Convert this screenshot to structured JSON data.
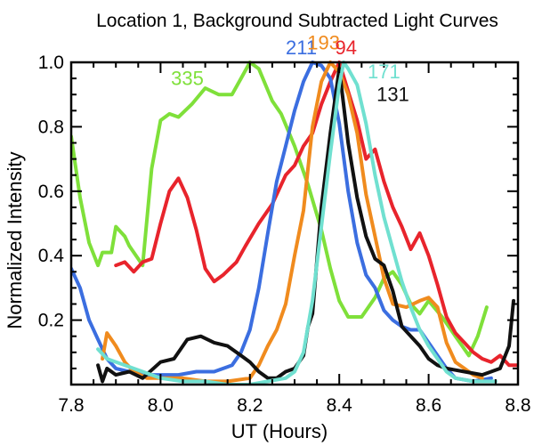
{
  "chart_data": {
    "type": "line",
    "title": "Location 1, Background Subtracted Light Curves",
    "xlabel": "UT (Hours)",
    "ylabel": "Normalized Intensity",
    "xlim": [
      7.8,
      8.8
    ],
    "ylim": [
      0.0,
      1.0
    ],
    "x_ticks": [
      7.8,
      8.0,
      8.2,
      8.4,
      8.6,
      8.8
    ],
    "x_tick_labels": [
      "7.8",
      "8.0",
      "8.2",
      "8.4",
      "8.6",
      "8.8"
    ],
    "y_ticks": [
      0.2,
      0.4,
      0.6,
      0.8,
      1.0
    ],
    "y_tick_labels": [
      "0.2",
      "0.4",
      "0.6",
      "0.8",
      "1.0"
    ],
    "series": [
      {
        "name": "335",
        "color": "#7fe03a",
        "points": [
          [
            7.8,
            0.77
          ],
          [
            7.82,
            0.58
          ],
          [
            7.84,
            0.44
          ],
          [
            7.86,
            0.37
          ],
          [
            7.87,
            0.41
          ],
          [
            7.89,
            0.41
          ],
          [
            7.9,
            0.49
          ],
          [
            7.92,
            0.46
          ],
          [
            7.93,
            0.43
          ],
          [
            7.95,
            0.39
          ],
          [
            7.96,
            0.37
          ],
          [
            7.98,
            0.67
          ],
          [
            8.0,
            0.82
          ],
          [
            8.02,
            0.84
          ],
          [
            8.04,
            0.83
          ],
          [
            8.07,
            0.87
          ],
          [
            8.1,
            0.92
          ],
          [
            8.13,
            0.9
          ],
          [
            8.16,
            0.9
          ],
          [
            8.18,
            0.95
          ],
          [
            8.2,
            1.0
          ],
          [
            8.22,
            0.98
          ],
          [
            8.25,
            0.88
          ],
          [
            8.27,
            0.84
          ],
          [
            8.3,
            0.74
          ],
          [
            8.33,
            0.62
          ],
          [
            8.36,
            0.48
          ],
          [
            8.38,
            0.36
          ],
          [
            8.4,
            0.26
          ],
          [
            8.42,
            0.21
          ],
          [
            8.45,
            0.21
          ],
          [
            8.48,
            0.27
          ],
          [
            8.5,
            0.33
          ],
          [
            8.52,
            0.35
          ],
          [
            8.54,
            0.31
          ],
          [
            8.56,
            0.25
          ],
          [
            8.58,
            0.22
          ],
          [
            8.6,
            0.26
          ],
          [
            8.63,
            0.21
          ],
          [
            8.66,
            0.15
          ],
          [
            8.69,
            0.09
          ],
          [
            8.71,
            0.15
          ],
          [
            8.73,
            0.24
          ]
        ]
      },
      {
        "name": "94",
        "color": "#e8242c",
        "points": [
          [
            7.9,
            0.37
          ],
          [
            7.92,
            0.38
          ],
          [
            7.94,
            0.35
          ],
          [
            7.96,
            0.38
          ],
          [
            7.98,
            0.39
          ],
          [
            8.0,
            0.5
          ],
          [
            8.02,
            0.6
          ],
          [
            8.04,
            0.64
          ],
          [
            8.06,
            0.58
          ],
          [
            8.08,
            0.48
          ],
          [
            8.1,
            0.36
          ],
          [
            8.12,
            0.32
          ],
          [
            8.14,
            0.34
          ],
          [
            8.17,
            0.38
          ],
          [
            8.19,
            0.43
          ],
          [
            8.22,
            0.5
          ],
          [
            8.25,
            0.56
          ],
          [
            8.28,
            0.65
          ],
          [
            8.3,
            0.68
          ],
          [
            8.32,
            0.74
          ],
          [
            8.34,
            0.78
          ],
          [
            8.36,
            0.87
          ],
          [
            8.38,
            0.94
          ],
          [
            8.4,
            1.0
          ],
          [
            8.42,
            0.91
          ],
          [
            8.44,
            0.82
          ],
          [
            8.46,
            0.7
          ],
          [
            8.48,
            0.73
          ],
          [
            8.5,
            0.63
          ],
          [
            8.52,
            0.55
          ],
          [
            8.54,
            0.49
          ],
          [
            8.56,
            0.42
          ],
          [
            8.58,
            0.47
          ],
          [
            8.6,
            0.4
          ],
          [
            8.62,
            0.31
          ],
          [
            8.64,
            0.21
          ],
          [
            8.66,
            0.16
          ],
          [
            8.68,
            0.13
          ],
          [
            8.7,
            0.1
          ],
          [
            8.72,
            0.08
          ],
          [
            8.74,
            0.07
          ],
          [
            8.76,
            0.09
          ],
          [
            8.78,
            0.06
          ],
          [
            8.8,
            0.06
          ]
        ]
      },
      {
        "name": "211",
        "color": "#3b6ee0",
        "points": [
          [
            7.8,
            0.36
          ],
          [
            7.82,
            0.3
          ],
          [
            7.84,
            0.2
          ],
          [
            7.86,
            0.14
          ],
          [
            7.88,
            0.08
          ],
          [
            7.9,
            0.05
          ],
          [
            7.93,
            0.04
          ],
          [
            7.96,
            0.03
          ],
          [
            8.0,
            0.03
          ],
          [
            8.04,
            0.03
          ],
          [
            8.08,
            0.04
          ],
          [
            8.12,
            0.04
          ],
          [
            8.16,
            0.06
          ],
          [
            8.18,
            0.1
          ],
          [
            8.2,
            0.17
          ],
          [
            8.22,
            0.3
          ],
          [
            8.24,
            0.47
          ],
          [
            8.26,
            0.63
          ],
          [
            8.28,
            0.74
          ],
          [
            8.3,
            0.85
          ],
          [
            8.32,
            0.94
          ],
          [
            8.34,
            1.0
          ],
          [
            8.36,
            0.99
          ],
          [
            8.38,
            0.95
          ],
          [
            8.4,
            0.81
          ],
          [
            8.42,
            0.6
          ],
          [
            8.44,
            0.44
          ],
          [
            8.46,
            0.34
          ],
          [
            8.48,
            0.3
          ],
          [
            8.5,
            0.23
          ],
          [
            8.52,
            0.2
          ],
          [
            8.54,
            0.18
          ],
          [
            8.56,
            0.17
          ],
          [
            8.58,
            0.17
          ],
          [
            8.6,
            0.13
          ],
          [
            8.62,
            0.09
          ],
          [
            8.64,
            0.05
          ],
          [
            8.66,
            0.02
          ],
          [
            8.7,
            0.01
          ],
          [
            8.74,
            0.02
          ]
        ]
      },
      {
        "name": "193",
        "color": "#f08b1e",
        "points": [
          [
            7.87,
            0.08
          ],
          [
            7.88,
            0.16
          ],
          [
            7.9,
            0.12
          ],
          [
            7.92,
            0.07
          ],
          [
            7.94,
            0.04
          ],
          [
            7.97,
            0.02
          ],
          [
            8.0,
            0.02
          ],
          [
            8.05,
            0.02
          ],
          [
            8.1,
            0.01
          ],
          [
            8.15,
            0.01
          ],
          [
            8.2,
            0.02
          ],
          [
            8.22,
            0.06
          ],
          [
            8.24,
            0.12
          ],
          [
            8.26,
            0.17
          ],
          [
            8.28,
            0.25
          ],
          [
            8.3,
            0.4
          ],
          [
            8.32,
            0.54
          ],
          [
            8.34,
            0.8
          ],
          [
            8.36,
            0.94
          ],
          [
            8.38,
            1.0
          ],
          [
            8.4,
            0.97
          ],
          [
            8.42,
            0.9
          ],
          [
            8.44,
            0.78
          ],
          [
            8.46,
            0.59
          ],
          [
            8.48,
            0.46
          ],
          [
            8.5,
            0.33
          ],
          [
            8.52,
            0.25
          ],
          [
            8.55,
            0.24
          ],
          [
            8.58,
            0.26
          ],
          [
            8.6,
            0.27
          ],
          [
            8.62,
            0.24
          ],
          [
            8.64,
            0.13
          ],
          [
            8.66,
            0.07
          ],
          [
            8.68,
            0.05
          ],
          [
            8.7,
            0.03
          ],
          [
            8.72,
            0.02
          ]
        ]
      },
      {
        "name": "131",
        "color": "#111111",
        "points": [
          [
            7.86,
            0.06
          ],
          [
            7.87,
            0.01
          ],
          [
            7.88,
            0.05
          ],
          [
            7.9,
            0.03
          ],
          [
            7.93,
            0.04
          ],
          [
            7.96,
            0.02
          ],
          [
            8.0,
            0.07
          ],
          [
            8.03,
            0.08
          ],
          [
            8.06,
            0.14
          ],
          [
            8.09,
            0.15
          ],
          [
            8.12,
            0.13
          ],
          [
            8.15,
            0.12
          ],
          [
            8.18,
            0.09
          ],
          [
            8.2,
            0.07
          ],
          [
            8.22,
            0.04
          ],
          [
            8.24,
            0.02
          ],
          [
            8.26,
            0.02
          ],
          [
            8.28,
            0.04
          ],
          [
            8.3,
            0.05
          ],
          [
            8.32,
            0.09
          ],
          [
            8.33,
            0.18
          ],
          [
            8.34,
            0.22
          ],
          [
            8.36,
            0.55
          ],
          [
            8.38,
            0.78
          ],
          [
            8.4,
            0.98
          ],
          [
            8.42,
            0.75
          ],
          [
            8.44,
            0.58
          ],
          [
            8.46,
            0.46
          ],
          [
            8.48,
            0.39
          ],
          [
            8.5,
            0.37
          ],
          [
            8.52,
            0.29
          ],
          [
            8.54,
            0.18
          ],
          [
            8.56,
            0.15
          ],
          [
            8.58,
            0.12
          ],
          [
            8.6,
            0.08
          ],
          [
            8.62,
            0.06
          ],
          [
            8.64,
            0.05
          ],
          [
            8.68,
            0.04
          ],
          [
            8.72,
            0.03
          ],
          [
            8.76,
            0.05
          ],
          [
            8.78,
            0.12
          ],
          [
            8.79,
            0.26
          ]
        ]
      },
      {
        "name": "171",
        "color": "#70e0d0",
        "points": [
          [
            7.86,
            0.11
          ],
          [
            7.88,
            0.08
          ],
          [
            7.92,
            0.06
          ],
          [
            7.96,
            0.04
          ],
          [
            8.0,
            0.02
          ],
          [
            8.05,
            0.01
          ],
          [
            8.1,
            0.01
          ],
          [
            8.15,
            0.0
          ],
          [
            8.2,
            0.0
          ],
          [
            8.24,
            0.01
          ],
          [
            8.28,
            0.02
          ],
          [
            8.3,
            0.04
          ],
          [
            8.32,
            0.1
          ],
          [
            8.34,
            0.26
          ],
          [
            8.36,
            0.49
          ],
          [
            8.38,
            0.72
          ],
          [
            8.4,
            0.93
          ],
          [
            8.41,
            1.0
          ],
          [
            8.42,
            0.98
          ],
          [
            8.44,
            0.93
          ],
          [
            8.46,
            0.81
          ],
          [
            8.48,
            0.65
          ],
          [
            8.5,
            0.52
          ],
          [
            8.52,
            0.42
          ],
          [
            8.54,
            0.32
          ],
          [
            8.56,
            0.24
          ],
          [
            8.58,
            0.17
          ],
          [
            8.6,
            0.12
          ],
          [
            8.62,
            0.08
          ],
          [
            8.64,
            0.04
          ],
          [
            8.66,
            0.02
          ],
          [
            8.7,
            0.01
          ],
          [
            8.75,
            0.01
          ]
        ]
      }
    ],
    "labels": [
      {
        "text": "211",
        "color": "#3b6ee0",
        "x": 8.315,
        "y": 1.025
      },
      {
        "text": "193",
        "color": "#f08b1e",
        "x": 8.365,
        "y": 1.04
      },
      {
        "text": "94",
        "color": "#e8242c",
        "x": 8.415,
        "y": 1.025
      },
      {
        "text": "335",
        "color": "#7fe03a",
        "x": 8.06,
        "y": 0.93
      },
      {
        "text": "171",
        "color": "#70e0d0",
        "x": 8.5,
        "y": 0.95
      },
      {
        "text": "131",
        "color": "#111111",
        "x": 8.52,
        "y": 0.88
      }
    ]
  }
}
